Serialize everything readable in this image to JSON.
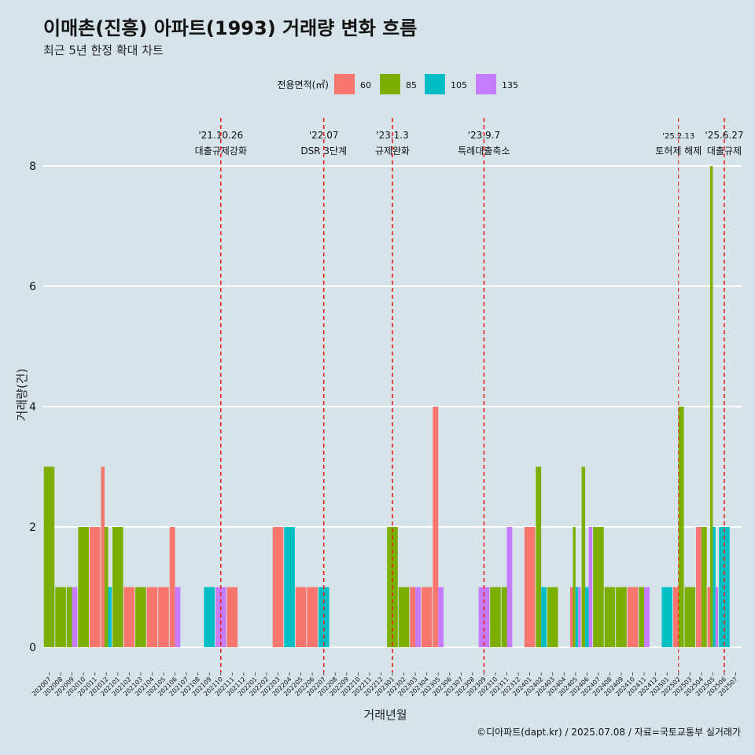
{
  "colors": {
    "background": "#d6e4ea",
    "grid": "#ffffff",
    "event_line": "#e8221c",
    "60": "#f8766d",
    "85": "#7cae00",
    "105": "#00bfc4",
    "135": "#c77cff"
  },
  "title": "이매촌(진흥) 아파트(1993) 거래량 변화 흐름",
  "subtitle": "최근 5년 한정 확대 차트",
  "caption": "©디아파트(dapt.kr) / 2025.07.08 / 자료=국토교통부 실거래가",
  "chart_data": {
    "type": "bar",
    "xlabel": "거래년월",
    "ylabel": "거래량(건)",
    "ylim": [
      0,
      8.5
    ],
    "yticks": [
      0,
      2,
      4,
      6,
      8
    ],
    "grid": true,
    "legend": {
      "position": "top",
      "title": "전용면적(㎡)",
      "entries": [
        "60",
        "85",
        "105",
        "135"
      ]
    },
    "categories": [
      "202007",
      "202008",
      "202009",
      "202010",
      "202011",
      "202012",
      "202101",
      "202102",
      "202103",
      "202104",
      "202105",
      "202106",
      "202107",
      "202108",
      "202109",
      "202110",
      "202111",
      "202112",
      "202201",
      "202202",
      "202203",
      "202204",
      "202205",
      "202206",
      "202207",
      "202208",
      "202209",
      "202210",
      "202211",
      "202212",
      "202301",
      "202302",
      "202303",
      "202304",
      "202305",
      "202306",
      "202307",
      "202308",
      "202309",
      "202310",
      "202311",
      "202312",
      "202401",
      "202402",
      "202403",
      "202404",
      "202405",
      "202406",
      "202407",
      "202408",
      "202409",
      "202410",
      "202411",
      "202412",
      "202501",
      "202502",
      "202503",
      "202504",
      "202505",
      "202506",
      "202507"
    ],
    "series": [
      {
        "name": "60",
        "values": [
          0,
          0,
          0,
          0,
          2,
          3,
          0,
          1,
          0,
          1,
          1,
          2,
          0,
          0,
          0,
          0,
          1,
          0,
          0,
          0,
          2,
          0,
          1,
          1,
          0,
          0,
          0,
          0,
          0,
          0,
          0,
          0,
          1,
          1,
          4,
          0,
          0,
          0,
          0,
          0,
          0,
          0,
          2,
          0,
          0,
          0,
          1,
          0,
          0,
          0,
          0,
          1,
          0,
          0,
          0,
          1,
          0,
          2,
          1,
          0,
          0
        ]
      },
      {
        "name": "85",
        "values": [
          3,
          1,
          1,
          2,
          0,
          2,
          2,
          0,
          1,
          0,
          0,
          0,
          0,
          0,
          0,
          0,
          0,
          0,
          0,
          0,
          0,
          0,
          0,
          0,
          0,
          0,
          0,
          0,
          0,
          0,
          2,
          1,
          0,
          0,
          0,
          0,
          0,
          0,
          0,
          1,
          1,
          0,
          0,
          3,
          1,
          0,
          2,
          3,
          2,
          1,
          1,
          0,
          1,
          0,
          0,
          4,
          1,
          2,
          8,
          0,
          0
        ]
      },
      {
        "name": "105",
        "values": [
          0,
          0,
          0,
          0,
          0,
          1,
          0,
          0,
          0,
          0,
          0,
          0,
          0,
          0,
          1,
          0,
          0,
          0,
          0,
          0,
          0,
          2,
          0,
          0,
          1,
          0,
          0,
          0,
          0,
          0,
          0,
          0,
          0,
          0,
          0,
          0,
          0,
          0,
          0,
          0,
          0,
          0,
          0,
          1,
          0,
          0,
          1,
          1,
          0,
          0,
          0,
          0,
          0,
          0,
          1,
          0,
          0,
          0,
          2,
          2,
          0
        ]
      },
      {
        "name": "135",
        "values": [
          0,
          0,
          1,
          0,
          0,
          0,
          0,
          0,
          0,
          0,
          0,
          1,
          0,
          0,
          0,
          1,
          0,
          0,
          0,
          0,
          0,
          0,
          0,
          0,
          0,
          0,
          0,
          0,
          0,
          0,
          0,
          0,
          1,
          0,
          1,
          0,
          0,
          0,
          1,
          0,
          2,
          0,
          0,
          0,
          0,
          0,
          1,
          2,
          0,
          0,
          0,
          0,
          1,
          0,
          0,
          0,
          0,
          0,
          1,
          0,
          0
        ]
      }
    ],
    "annotations": [
      {
        "x": "202110",
        "date": "'21.10.26",
        "label": "대출규제강화"
      },
      {
        "x": "202207",
        "date": "'22.07",
        "label": "DSR 3단계"
      },
      {
        "x": "202301",
        "date": "'23.1.3",
        "label": "규제완화"
      },
      {
        "x": "202309",
        "date": "'23.9.7",
        "label": "특례대출축소"
      },
      {
        "x": "202502",
        "date": "'25.2.13",
        "label": "토허제 해제"
      },
      {
        "x": "202506",
        "date": "'25.6.27",
        "label": "대출규제"
      }
    ]
  }
}
